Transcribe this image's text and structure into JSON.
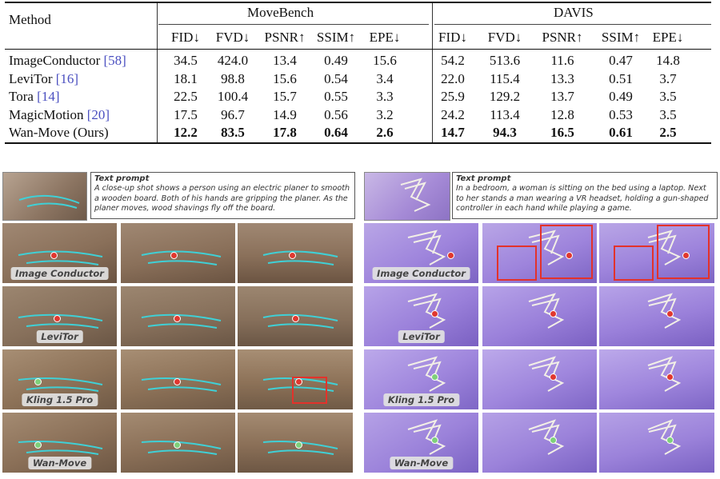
{
  "table": {
    "method_header": "Method",
    "groups": [
      "MoveBench",
      "DAVIS"
    ],
    "metrics": [
      "FID↓",
      "FVD↓",
      "PSNR↑",
      "SSIM↑",
      "EPE↓",
      "FID↓",
      "FVD↓",
      "PSNR↑",
      "SSIM↑",
      "EPE↓"
    ],
    "rows": [
      {
        "name": "ImageConductor",
        "cite": "[58]",
        "values": [
          "34.5",
          "424.0",
          "13.4",
          "0.49",
          "15.6",
          "54.2",
          "513.6",
          "11.6",
          "0.47",
          "14.8"
        ],
        "bold": false
      },
      {
        "name": "LeviTor",
        "cite": "[16]",
        "values": [
          "18.1",
          "98.8",
          "15.6",
          "0.54",
          "3.4",
          "22.0",
          "115.4",
          "13.3",
          "0.51",
          "3.7"
        ],
        "bold": false
      },
      {
        "name": "Tora",
        "cite": "[14]",
        "values": [
          "22.5",
          "100.4",
          "15.7",
          "0.55",
          "3.3",
          "25.9",
          "129.2",
          "13.7",
          "0.49",
          "3.5"
        ],
        "bold": false
      },
      {
        "name": "MagicMotion",
        "cite": "[20]",
        "values": [
          "17.5",
          "96.7",
          "14.9",
          "0.56",
          "3.2",
          "24.2",
          "113.4",
          "12.8",
          "0.53",
          "3.5"
        ],
        "bold": false
      },
      {
        "name": "Wan-Move (Ours)",
        "cite": "",
        "values": [
          "12.2",
          "83.5",
          "17.8",
          "0.64",
          "2.6",
          "14.7",
          "94.3",
          "16.5",
          "0.61",
          "2.5"
        ],
        "bold": true
      }
    ]
  },
  "figures": [
    {
      "prompt_title": "Text prompt",
      "prompt_text": "A close-up shot shows a person using an electric planer to smooth a wooden board. Both of his hands are gripping the planer. As the planer moves, wood shavings fly off the board.",
      "rows": [
        "Image Conductor",
        "LeviTor",
        "Kling 1.5 Pro",
        "Wan-Move"
      ]
    },
    {
      "prompt_title": "Text prompt",
      "prompt_text": "In a bedroom, a woman is sitting on the bed using a laptop. Next to her stands a man wearing a VR headset, holding a gun-shaped controller in each hand while playing a game.",
      "rows": [
        "Image Conductor",
        "LeviTor",
        "Kling 1.5 Pro",
        "Wan-Move"
      ]
    }
  ],
  "colors": {
    "citation": "#4a4fc0",
    "highlight_box": "#e3322b",
    "track_left": "#3fd0d6",
    "track_right": "#f2efe6"
  }
}
